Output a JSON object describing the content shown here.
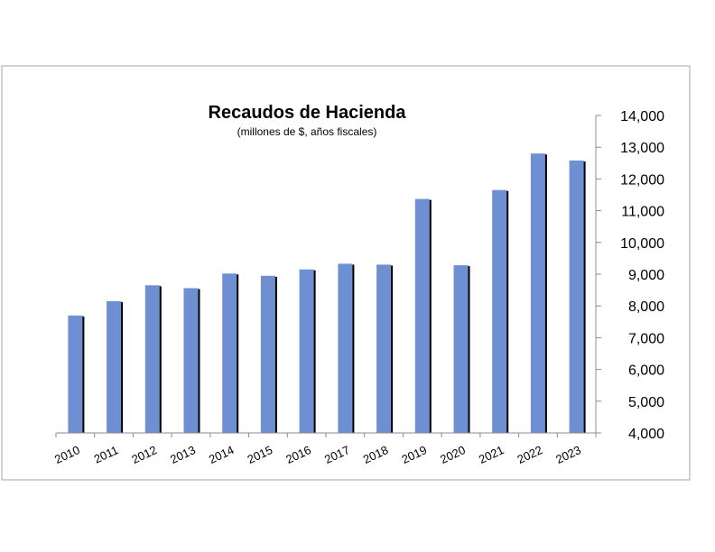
{
  "chart_data": {
    "type": "bar",
    "title": "Recaudos de Hacienda",
    "subtitle": "(millones de $, años fiscales)",
    "categories": [
      "2010",
      "2011",
      "2012",
      "2013",
      "2014",
      "2015",
      "2016",
      "2017",
      "2018",
      "2019",
      "2020",
      "2021",
      "2022",
      "2023"
    ],
    "values": [
      7700,
      8150,
      8650,
      8560,
      9020,
      8950,
      9150,
      9330,
      9300,
      11370,
      9280,
      11650,
      12800,
      12580
    ],
    "ylim": [
      4000,
      14000
    ],
    "yticks": [
      4000,
      5000,
      6000,
      7000,
      8000,
      9000,
      10000,
      11000,
      12000,
      13000,
      14000
    ],
    "ytick_labels": [
      "4,000",
      "5,000",
      "6,000",
      "7,000",
      "8,000",
      "9,000",
      "10,000",
      "11,000",
      "12,000",
      "13,000",
      "14,000"
    ],
    "y_axis_side": "right",
    "grid": false,
    "legend": "none",
    "colors": {
      "bar": "#6f8fd3",
      "bar_shadow": "#000000",
      "axis": "#8c8c8c",
      "frame": "#a6a6a6"
    }
  }
}
